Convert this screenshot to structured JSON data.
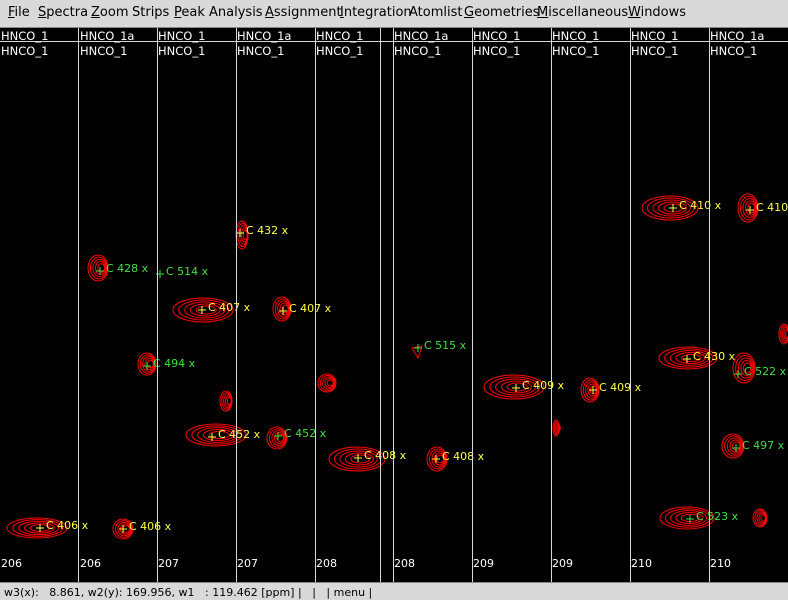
{
  "menu": [
    {
      "u": "F",
      "rest": "ile"
    },
    {
      "u": "S",
      "rest": "pectra"
    },
    {
      "u": "Z",
      "rest": "oom"
    },
    {
      "u": "",
      "rest": "Strips"
    },
    {
      "u": "P",
      "rest": "eak Analysis"
    },
    {
      "u": "A",
      "rest": "ssignment"
    },
    {
      "u": "I",
      "rest": "ntegration"
    },
    {
      "u": "",
      "rest": "Atomlist"
    },
    {
      "u": "G",
      "rest": "eometries"
    },
    {
      "u": "M",
      "rest": "iscellaneous"
    },
    {
      "u": "W",
      "rest": "indows"
    }
  ],
  "strips": [
    {
      "top": "HNCO_1",
      "bottom": "HNCO_1",
      "tick": "206"
    },
    {
      "top": "HNCO_1a",
      "bottom": "HNCO_1",
      "tick": "206"
    },
    {
      "top": "HNCO_1",
      "bottom": "HNCO_1",
      "tick": "207"
    },
    {
      "top": "HNCO_1a",
      "bottom": "HNCO_1",
      "tick": "207"
    },
    {
      "top": "HNCO_1",
      "bottom": "HNCO_1",
      "tick": "208"
    },
    {
      "top": "HNCO_1a",
      "bottom": "HNCO_1",
      "tick": "208"
    },
    {
      "top": "HNCO_1",
      "bottom": "HNCO_1",
      "tick": "209"
    },
    {
      "top": "HNCO_1",
      "bottom": "HNCO_1",
      "tick": "209"
    },
    {
      "top": "HNCO_1",
      "bottom": "HNCO_1",
      "tick": "210"
    },
    {
      "top": "HNCO_1a",
      "bottom": "HNCO_1",
      "tick": "210"
    }
  ],
  "peak_labels": [
    {
      "text": "C 406 x",
      "color": "yellow"
    },
    {
      "text": "C 406 x",
      "color": "yellow"
    },
    {
      "text": "C 428 x",
      "color": "green"
    },
    {
      "text": "C 514 x",
      "color": "green"
    },
    {
      "text": "C 494 x",
      "color": "green"
    },
    {
      "text": "C 407 x",
      "color": "yellow"
    },
    {
      "text": "C 452 x",
      "color": "yellow"
    },
    {
      "text": "C 432 x",
      "color": "yellow"
    },
    {
      "text": "C 407 x",
      "color": "yellow"
    },
    {
      "text": "C 452 x",
      "color": "green"
    },
    {
      "text": "C 408 x",
      "color": "yellow"
    },
    {
      "text": "C 515 x",
      "color": "green"
    },
    {
      "text": "C 408 x",
      "color": "yellow"
    },
    {
      "text": "C 409 x",
      "color": "yellow"
    },
    {
      "text": "C 409 x",
      "color": "yellow"
    },
    {
      "text": "C 410 x",
      "color": "yellow"
    },
    {
      "text": "C 430 x",
      "color": "yellow"
    },
    {
      "text": "C 523 x",
      "color": "green"
    },
    {
      "text": "C 410",
      "color": "yellow"
    },
    {
      "text": "C 522 x",
      "color": "green"
    },
    {
      "text": "C 497 x",
      "color": "green"
    }
  ],
  "colors": {
    "contour": "#ff0000",
    "yellow": "#ffff40",
    "green": "#40e040",
    "grid": "#d8d8d8",
    "background": "#000000"
  },
  "status": {
    "w3": "w3(x):   8.861, w2(y): 169.956, w1   : 119.462 [ppm] |",
    "sep": "|",
    "menu": "| menu |"
  }
}
